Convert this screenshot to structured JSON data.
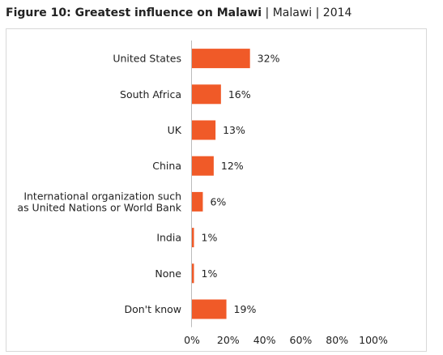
{
  "header": {
    "title": "Figure 10: Greatest influence on Malawi",
    "separator": "|",
    "country": "Malawi",
    "year": "2014"
  },
  "chart_data": {
    "type": "bar",
    "orientation": "horizontal",
    "categories": [
      [
        "United States"
      ],
      [
        "South Africa"
      ],
      [
        "UK"
      ],
      [
        "China"
      ],
      [
        "International organization such",
        "as United Nations or World Bank"
      ],
      [
        "India"
      ],
      [
        "None"
      ],
      [
        "Don't know"
      ]
    ],
    "values": [
      32,
      16,
      13,
      12,
      6,
      1,
      1,
      19
    ],
    "value_labels": [
      "32%",
      "16%",
      "13%",
      "12%",
      "6%",
      "1%",
      "1%",
      "19%"
    ],
    "xlim": [
      0,
      100
    ],
    "xticks": [
      0,
      20,
      40,
      60,
      80,
      100
    ],
    "xtick_labels": [
      "0%",
      "20%",
      "40%",
      "60%",
      "80%",
      "100%"
    ],
    "bar_color": "#f05a28",
    "grid": false,
    "legend": "none"
  }
}
